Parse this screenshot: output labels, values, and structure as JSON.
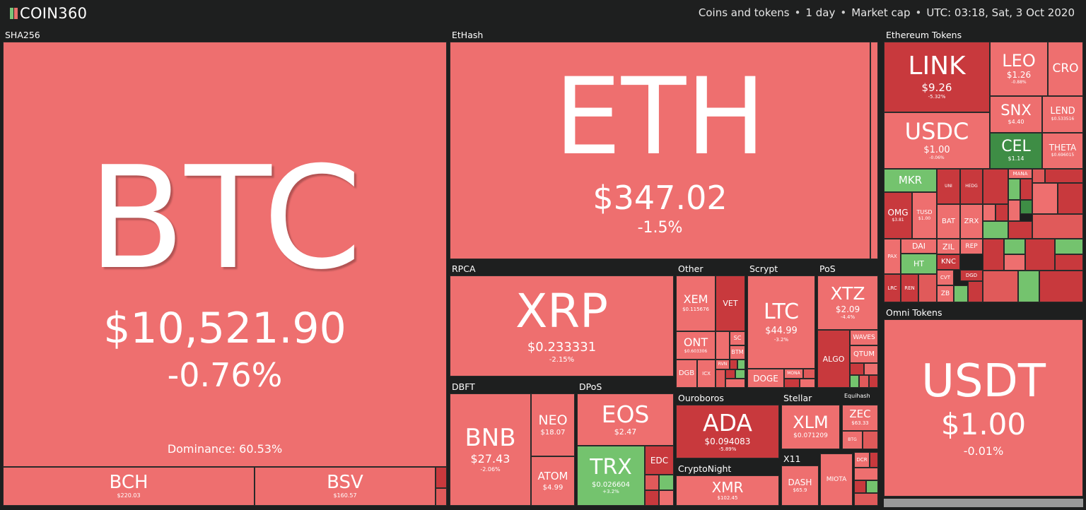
{
  "app": {
    "logo_text": "COIN360",
    "logo_colors": [
      "#7bc47a",
      "#e8716d"
    ],
    "meta": [
      "Coins and tokens",
      "1 day",
      "Market cap",
      "UTC: 03:18, Sat, 3 Oct 2020"
    ]
  },
  "colors": {
    "down": "#ee6f6f",
    "strong_down": "#c8393d",
    "up": "#74c36e",
    "strong_up": "#3e8d45",
    "background": "#1e1f1f"
  },
  "groups": {
    "sha256": "SHA256",
    "ethash": "EtHash",
    "eth_tokens": "Ethereum Tokens",
    "omni": "Omni Tokens",
    "rpca": "RPCA",
    "other": "Other",
    "scrypt": "Scrypt",
    "pos": "PoS",
    "dbft": "DBFT",
    "dpos": "DPoS",
    "ouroboros": "Ouroboros",
    "stellar": "Stellar",
    "equihash": "Equihash",
    "cryptonight": "CryptoNight",
    "x11": "X11"
  },
  "coins": {
    "btc": {
      "sym": "BTC",
      "price": "$10,521.90",
      "chg": "-0.76%",
      "dominance": "Dominance: 60.53%"
    },
    "bch": {
      "sym": "BCH",
      "price": "$220.03"
    },
    "bsv": {
      "sym": "BSV",
      "price": "$160.57"
    },
    "eth": {
      "sym": "ETH",
      "price": "$347.02",
      "chg": "-1.5%"
    },
    "xrp": {
      "sym": "XRP",
      "price": "$0.233331",
      "chg": "-2.15%"
    },
    "bnb": {
      "sym": "BNB",
      "price": "$27.43",
      "chg": "-2.06%"
    },
    "neo": {
      "sym": "NEO",
      "price": "$18.07"
    },
    "atom": {
      "sym": "ATOM",
      "price": "$4.99"
    },
    "eos": {
      "sym": "EOS",
      "price": "$2.47"
    },
    "trx": {
      "sym": "TRX",
      "price": "$0.026604",
      "chg": "+3.2%"
    },
    "edc": {
      "sym": "EDC"
    },
    "xem": {
      "sym": "XEM",
      "price": "$0.115676"
    },
    "vet": {
      "sym": "VET"
    },
    "ont": {
      "sym": "ONT",
      "price": "$0.603306"
    },
    "dgb": {
      "sym": "DGB"
    },
    "icx": {
      "sym": "ICX"
    },
    "sc": {
      "sym": "SC"
    },
    "btm": {
      "sym": "BTM"
    },
    "rvn": {
      "sym": "RVN"
    },
    "ltc": {
      "sym": "LTC",
      "price": "$44.99",
      "chg": "-3.2%"
    },
    "doge": {
      "sym": "DOGE"
    },
    "mona": {
      "sym": "MONA"
    },
    "xtz": {
      "sym": "XTZ",
      "price": "$2.09",
      "chg": "-4.4%"
    },
    "algo": {
      "sym": "ALGO"
    },
    "waves": {
      "sym": "WAVES"
    },
    "qtum": {
      "sym": "QTUM"
    },
    "ada": {
      "sym": "ADA",
      "price": "$0.094083",
      "chg": "-5.89%"
    },
    "xlm": {
      "sym": "XLM",
      "price": "$0.071209"
    },
    "zec": {
      "sym": "ZEC",
      "price": "$63.33"
    },
    "btg": {
      "sym": "BTG"
    },
    "dcr": {
      "sym": "DCR"
    },
    "xmr": {
      "sym": "XMR",
      "price": "$102.45"
    },
    "dash": {
      "sym": "DASH",
      "price": "$65.9"
    },
    "miota": {
      "sym": "MIOTA"
    },
    "link": {
      "sym": "LINK",
      "price": "$9.26",
      "chg": "-5.32%"
    },
    "leo": {
      "sym": "LEO",
      "price": "$1.26",
      "chg": "-0.88%"
    },
    "cro": {
      "sym": "CRO"
    },
    "usdc": {
      "sym": "USDC",
      "price": "$1.00",
      "chg": "-0.06%"
    },
    "snx": {
      "sym": "SNX",
      "price": "$4.40"
    },
    "lend": {
      "sym": "LEND",
      "price": "$0.533516"
    },
    "cel": {
      "sym": "CEL",
      "price": "$1.14"
    },
    "theta": {
      "sym": "THETA",
      "price": "$0.696015"
    },
    "mkr": {
      "sym": "MKR"
    },
    "omg": {
      "sym": "OMG",
      "price": "$3.81"
    },
    "tusd": {
      "sym": "TUSD",
      "price": "$1.00"
    },
    "bat": {
      "sym": "BAT"
    },
    "zrx": {
      "sym": "ZRX"
    },
    "dai": {
      "sym": "DAI"
    },
    "zil": {
      "sym": "ZIL"
    },
    "rep": {
      "sym": "REP"
    },
    "ht": {
      "sym": "HT"
    },
    "knc": {
      "sym": "KNC"
    },
    "cvt": {
      "sym": "CVT"
    },
    "zb": {
      "sym": "ZB"
    },
    "dgd": {
      "sym": "DGD"
    },
    "pax": {
      "sym": "PAX"
    },
    "lrc": {
      "sym": "LRC"
    },
    "ren": {
      "sym": "REN"
    },
    "hedg": {
      "sym": "HEDG"
    },
    "mana": {
      "sym": "MANA"
    },
    "uni": {
      "sym": "UNI"
    },
    "usdt": {
      "sym": "USDT",
      "price": "$1.00",
      "chg": "-0.01%"
    }
  }
}
